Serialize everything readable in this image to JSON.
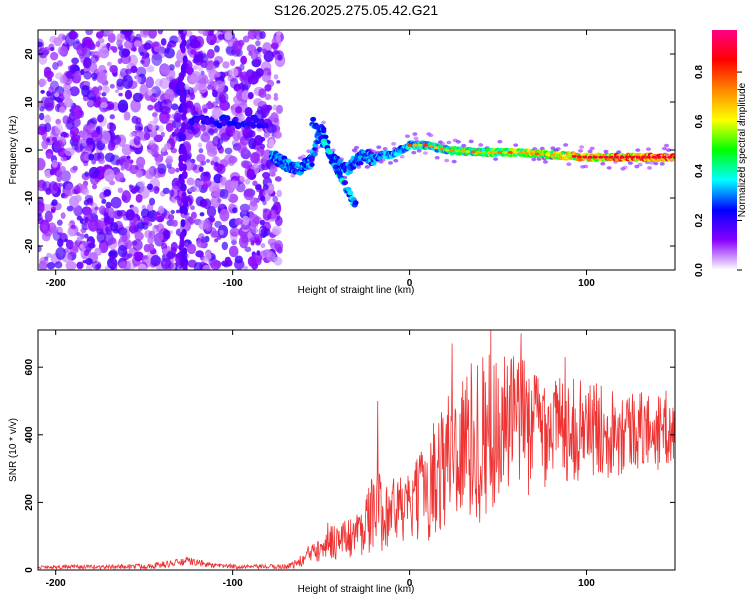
{
  "chart_data": [
    {
      "type": "heatmap",
      "title": "S126.2025.275.05.42.G21",
      "xlabel": "Height of straight line (km)",
      "ylabel": "Frequency (Hz)",
      "xlim": [
        -210,
        150
      ],
      "ylim": [
        -25,
        25
      ],
      "xticks": [
        -200,
        -100,
        0,
        100
      ],
      "yticks": [
        -20,
        -10,
        0,
        10,
        20
      ],
      "colorbar": {
        "label": "Normalized spectral amplitude",
        "range": [
          0.0,
          0.97
        ],
        "ticks": [
          0.0,
          0.2,
          0.4,
          0.6,
          0.8
        ],
        "tick_labels": [
          "0.0",
          "0.2",
          "0.4",
          "0.6",
          "0.8"
        ],
        "colors": [
          "#ffffff",
          "#8800ff",
          "#0000ff",
          "#00ffff",
          "#00ff00",
          "#ffff00",
          "#ff8800",
          "#ff0000",
          "#ff0088"
        ]
      },
      "ridge": {
        "x": [
          -78,
          -70,
          -62,
          -55,
          -50,
          -45,
          -40,
          -35,
          -30,
          -25,
          -20,
          -15,
          -10,
          -5,
          0,
          10,
          20,
          40,
          60,
          80,
          100,
          120,
          150
        ],
        "freq_hz": [
          -1,
          -3,
          -4,
          -2,
          5,
          -1,
          -3,
          -4,
          -2,
          -1,
          -2,
          -1,
          -1,
          0,
          1,
          1,
          0,
          -0.5,
          -0.5,
          -1,
          -1.5,
          -1.5,
          -1.5
        ]
      }
    },
    {
      "type": "line",
      "xlabel": "Height of straight line (km)",
      "ylabel": "SNR (10 * v/v)",
      "xlim": [
        -210,
        150
      ],
      "ylim": [
        0,
        710
      ],
      "xticks": [
        -200,
        -100,
        0,
        100
      ],
      "yticks": [
        0,
        200,
        400,
        600
      ],
      "color": "#ee3333",
      "envelope": {
        "x": [
          -210,
          -170,
          -150,
          -140,
          -125,
          -110,
          -90,
          -70,
          -65,
          -60,
          -55,
          -50,
          -40,
          -30,
          -20,
          -10,
          0,
          20,
          40,
          60,
          80,
          100,
          120,
          140,
          150
        ],
        "y_max": [
          15,
          15,
          20,
          25,
          38,
          20,
          15,
          18,
          30,
          50,
          90,
          150,
          140,
          170,
          290,
          280,
          280,
          520,
          650,
          640,
          580,
          560,
          540,
          520,
          500
        ],
        "y_min": [
          3,
          3,
          3,
          5,
          15,
          5,
          3,
          3,
          5,
          8,
          15,
          20,
          25,
          35,
          50,
          60,
          70,
          90,
          120,
          200,
          250,
          260,
          280,
          290,
          300
        ]
      },
      "peaks": [
        {
          "x": -18,
          "y": 500
        },
        {
          "x": 24,
          "y": 670
        },
        {
          "x": 46,
          "y": 710
        },
        {
          "x": 63,
          "y": 700
        },
        {
          "x": 88,
          "y": 630
        },
        {
          "x": 145,
          "y": 530
        }
      ]
    }
  ]
}
